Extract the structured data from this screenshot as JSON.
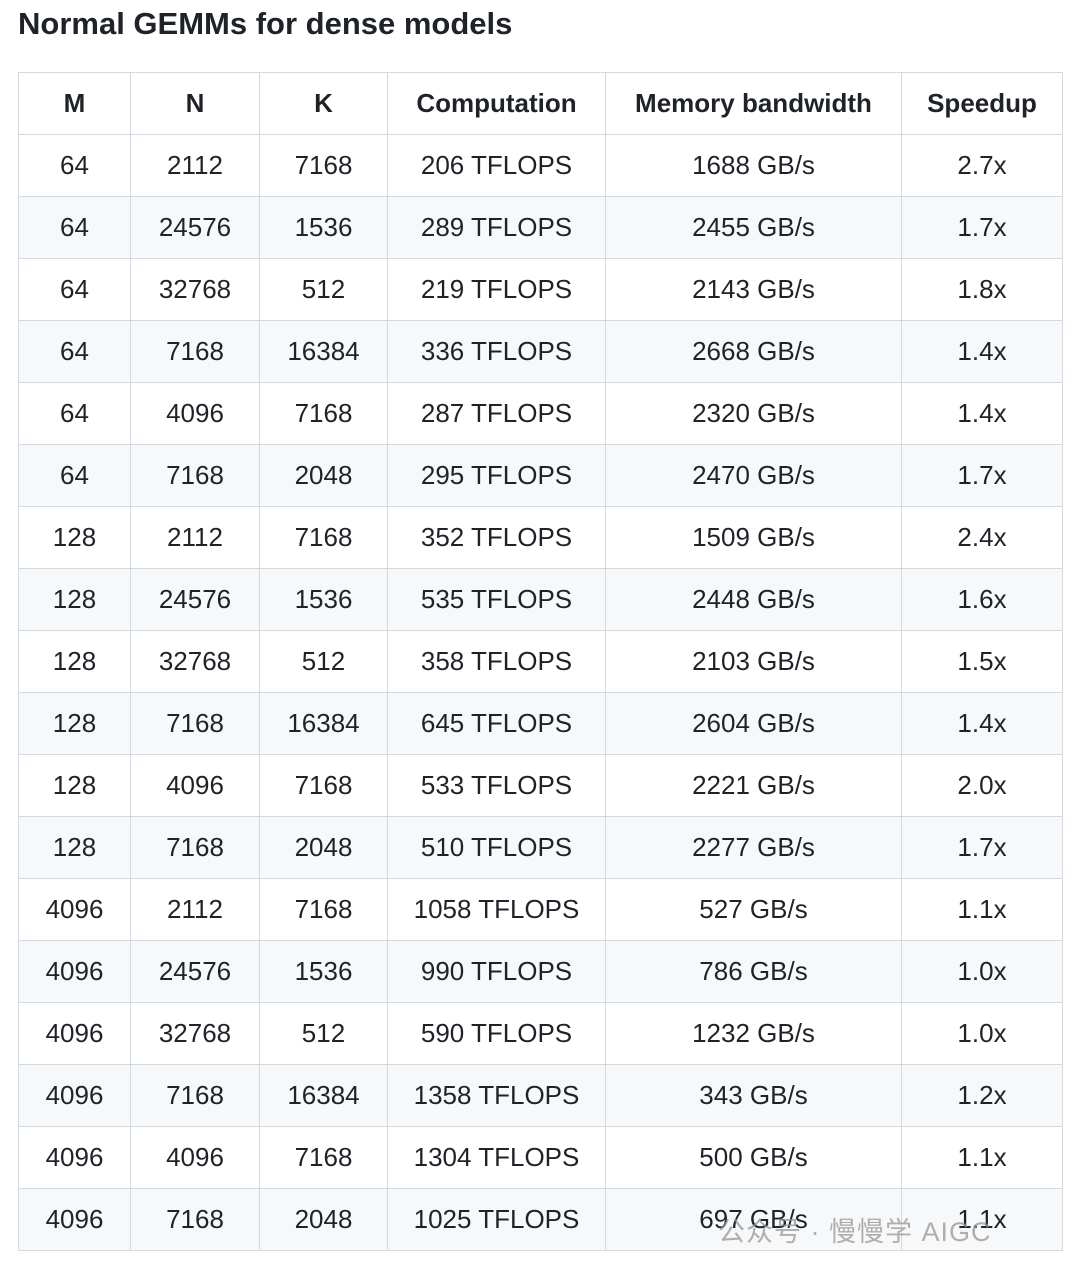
{
  "header": {
    "title": "Normal GEMMs for dense models"
  },
  "table": {
    "columns": [
      "M",
      "N",
      "K",
      "Computation",
      "Memory bandwidth",
      "Speedup"
    ],
    "rows": [
      [
        "64",
        "2112",
        "7168",
        "206 TFLOPS",
        "1688 GB/s",
        "2.7x"
      ],
      [
        "64",
        "24576",
        "1536",
        "289 TFLOPS",
        "2455 GB/s",
        "1.7x"
      ],
      [
        "64",
        "32768",
        "512",
        "219 TFLOPS",
        "2143 GB/s",
        "1.8x"
      ],
      [
        "64",
        "7168",
        "16384",
        "336 TFLOPS",
        "2668 GB/s",
        "1.4x"
      ],
      [
        "64",
        "4096",
        "7168",
        "287 TFLOPS",
        "2320 GB/s",
        "1.4x"
      ],
      [
        "64",
        "7168",
        "2048",
        "295 TFLOPS",
        "2470 GB/s",
        "1.7x"
      ],
      [
        "128",
        "2112",
        "7168",
        "352 TFLOPS",
        "1509 GB/s",
        "2.4x"
      ],
      [
        "128",
        "24576",
        "1536",
        "535 TFLOPS",
        "2448 GB/s",
        "1.6x"
      ],
      [
        "128",
        "32768",
        "512",
        "358 TFLOPS",
        "2103 GB/s",
        "1.5x"
      ],
      [
        "128",
        "7168",
        "16384",
        "645 TFLOPS",
        "2604 GB/s",
        "1.4x"
      ],
      [
        "128",
        "4096",
        "7168",
        "533 TFLOPS",
        "2221 GB/s",
        "2.0x"
      ],
      [
        "128",
        "7168",
        "2048",
        "510 TFLOPS",
        "2277 GB/s",
        "1.7x"
      ],
      [
        "4096",
        "2112",
        "7168",
        "1058 TFLOPS",
        "527 GB/s",
        "1.1x"
      ],
      [
        "4096",
        "24576",
        "1536",
        "990 TFLOPS",
        "786 GB/s",
        "1.0x"
      ],
      [
        "4096",
        "32768",
        "512",
        "590 TFLOPS",
        "1232 GB/s",
        "1.0x"
      ],
      [
        "4096",
        "7168",
        "16384",
        "1358 TFLOPS",
        "343 GB/s",
        "1.2x"
      ],
      [
        "4096",
        "4096",
        "7168",
        "1304 TFLOPS",
        "500 GB/s",
        "1.1x"
      ],
      [
        "4096",
        "7168",
        "2048",
        "1025 TFLOPS",
        "697 GB/s",
        "1.1x"
      ]
    ]
  },
  "watermark": "公众号 · 慢慢学 AIGC"
}
